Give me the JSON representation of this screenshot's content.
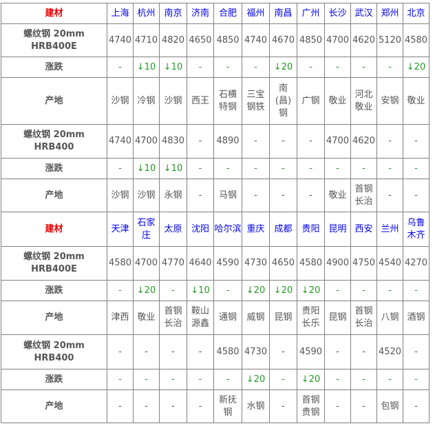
{
  "sections": [
    {
      "header_label": "建材",
      "cities": [
        "上海",
        "杭州",
        "南京",
        "济南",
        "合肥",
        "福州",
        "南昌",
        "广州",
        "长沙",
        "武汉",
        "郑州",
        "北京"
      ],
      "rows": [
        {
          "label": "螺纹钢 20mm HRB400E",
          "type": "price",
          "values": [
            "4740",
            "4710",
            "4820",
            "4650",
            "4850",
            "4740",
            "4670",
            "4850",
            "4700",
            "4620",
            "5120",
            "4580"
          ]
        },
        {
          "label": "涨跌",
          "type": "change",
          "values": [
            "-",
            "↓10",
            "↓10",
            "-",
            "-",
            "-",
            "↓20",
            "-",
            "-",
            "-",
            "-",
            "↓20"
          ]
        },
        {
          "label": "产地",
          "type": "origin",
          "values": [
            "沙钢",
            "冷钢",
            "沙钢",
            "西王",
            "石横特钢",
            "三宝钢铁",
            "南(昌)钢",
            "广钢",
            "敬业",
            "河北敬业",
            "安钢",
            "敬业"
          ]
        },
        {
          "label": "螺纹钢 20mm HRB400",
          "type": "price",
          "values": [
            "4740",
            "4700",
            "4830",
            "-",
            "4890",
            "-",
            "-",
            "-",
            "4700",
            "4620",
            "-",
            "-"
          ]
        },
        {
          "label": "涨跌",
          "type": "change",
          "values": [
            "-",
            "↓10",
            "↓10",
            "-",
            "-",
            "-",
            "-",
            "-",
            "-",
            "-",
            "-",
            "-"
          ]
        },
        {
          "label": "产地",
          "type": "origin",
          "values": [
            "沙钢",
            "沙钢",
            "永钢",
            "-",
            "马钢",
            "-",
            "-",
            "-",
            "敬业",
            "首钢长治",
            "-",
            "-"
          ]
        }
      ]
    },
    {
      "header_label": "建材",
      "cities": [
        "天津",
        "石家庄",
        "太原",
        "沈阳",
        "哈尔滨",
        "重庆",
        "成都",
        "贵阳",
        "昆明",
        "西安",
        "兰州",
        "乌鲁木齐"
      ],
      "rows": [
        {
          "label": "螺纹钢 20mm HRB400E",
          "type": "price",
          "values": [
            "4580",
            "4700",
            "4770",
            "4640",
            "4590",
            "4730",
            "4650",
            "4580",
            "4900",
            "4750",
            "4540",
            "4270"
          ]
        },
        {
          "label": "涨跌",
          "type": "change",
          "values": [
            "-",
            "↓20",
            "-",
            "↓10",
            "-",
            "↓20",
            "↓20",
            "↓20",
            "-",
            "-",
            "-",
            "-"
          ]
        },
        {
          "label": "产地",
          "type": "origin",
          "values": [
            "津西",
            "敬业",
            "首钢长治",
            "鞍山源鑫",
            "通钢",
            "威钢",
            "昆钢",
            "贵阳长乐",
            "昆钢",
            "首钢长治",
            "八钢",
            "酒钢"
          ]
        },
        {
          "label": "螺纹钢 20mm HRB400",
          "type": "price",
          "values": [
            "-",
            "-",
            "-",
            "-",
            "4580",
            "4730",
            "-",
            "4590",
            "-",
            "-",
            "4520",
            "-"
          ]
        },
        {
          "label": "涨跌",
          "type": "change",
          "values": [
            "-",
            "-",
            "-",
            "-",
            "-",
            "↓20",
            "-",
            "↓20",
            "-",
            "-",
            "-",
            "-"
          ]
        },
        {
          "label": "产地",
          "type": "origin",
          "values": [
            "-",
            "-",
            "-",
            "-",
            "新抚钢",
            "水钢",
            "-",
            "首钢贵钢",
            "-",
            "-",
            "包钢",
            "-"
          ]
        }
      ]
    }
  ],
  "colors": {
    "header": "#e00000",
    "city": "#0000ee",
    "change": "#229922",
    "text": "#555555"
  }
}
